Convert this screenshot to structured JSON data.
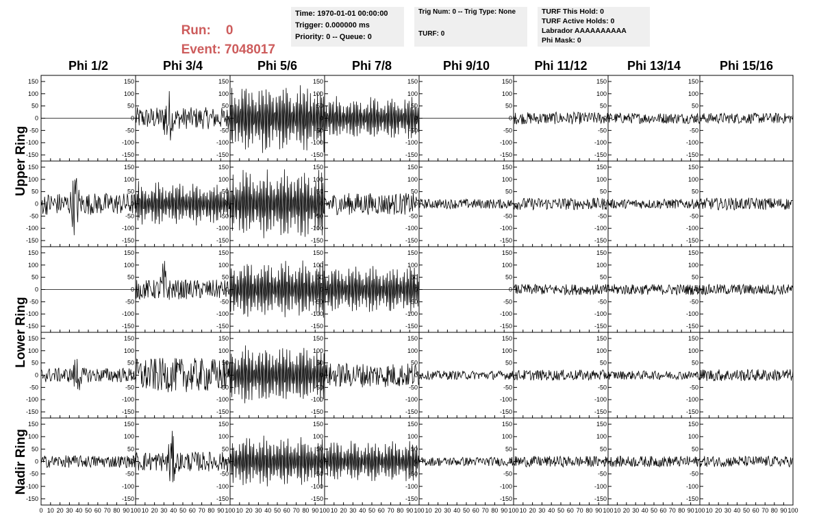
{
  "header": {
    "run_label": "Run:",
    "run_value": "0",
    "event_label": "Event:",
    "event_value": "7048017",
    "info1": [
      "Time: 1970-01-01 00:00:00",
      "Trigger: 0.000000 ms",
      "Priority: 0 -- Queue: 0"
    ],
    "info2": [
      "Trig Num: 0 -- Trig Type: None",
      "",
      "TURF: 0"
    ],
    "info3": [
      "TURF This Hold: 0",
      "TURF Active Holds: 0",
      "Labrador AAAAAAAAAA",
      "Phi Mask: 0"
    ]
  },
  "chart_data": {
    "type": "line",
    "columns": [
      "Phi 1/2",
      "Phi 3/4",
      "Phi 5/6",
      "Phi 7/8",
      "Phi 9/10",
      "Phi 11/12",
      "Phi 13/14",
      "Phi 15/16"
    ],
    "row_labels": [
      "Upper Ring",
      "Lower Ring",
      "Nadir Ring"
    ],
    "ylim": [
      -175,
      175
    ],
    "yticks": [
      -150,
      -100,
      -50,
      0,
      50,
      100,
      150
    ],
    "xlim": [
      0,
      100
    ],
    "xticks": [
      0,
      10,
      20,
      30,
      40,
      50,
      60,
      70,
      80,
      90,
      100
    ],
    "panels": [
      [
        {
          "amp": 0
        },
        {
          "amp": 45,
          "burst": 34
        },
        {
          "amp": 150
        },
        {
          "amp": 95
        },
        {
          "amp": 0
        },
        {
          "amp": 25
        },
        {
          "amp": 22
        },
        {
          "amp": 22
        }
      ],
      [
        {
          "amp": 45,
          "burst": 36
        },
        {
          "amp": 95
        },
        {
          "amp": 150
        },
        {
          "amp": 45
        },
        {
          "amp": 20
        },
        {
          "amp": 25
        },
        {
          "amp": 20
        },
        {
          "amp": 25
        }
      ],
      [
        {
          "amp": 0
        },
        {
          "amp": 40,
          "burst": 30
        },
        {
          "amp": 125
        },
        {
          "amp": 105
        },
        {
          "amp": 0
        },
        {
          "amp": 22
        },
        {
          "amp": 22
        },
        {
          "amp": 22
        }
      ],
      [
        {
          "amp": 30,
          "burst": 38
        },
        {
          "amp": 70
        },
        {
          "amp": 130
        },
        {
          "amp": 50
        },
        {
          "amp": 18
        },
        {
          "amp": 22
        },
        {
          "amp": 18
        },
        {
          "amp": 25
        }
      ],
      [
        {
          "amp": 25
        },
        {
          "amp": 40,
          "burst": 38
        },
        {
          "amp": 110
        },
        {
          "amp": 90
        },
        {
          "amp": 18
        },
        {
          "amp": 22
        },
        {
          "amp": 22
        },
        {
          "amp": 22
        }
      ]
    ]
  }
}
